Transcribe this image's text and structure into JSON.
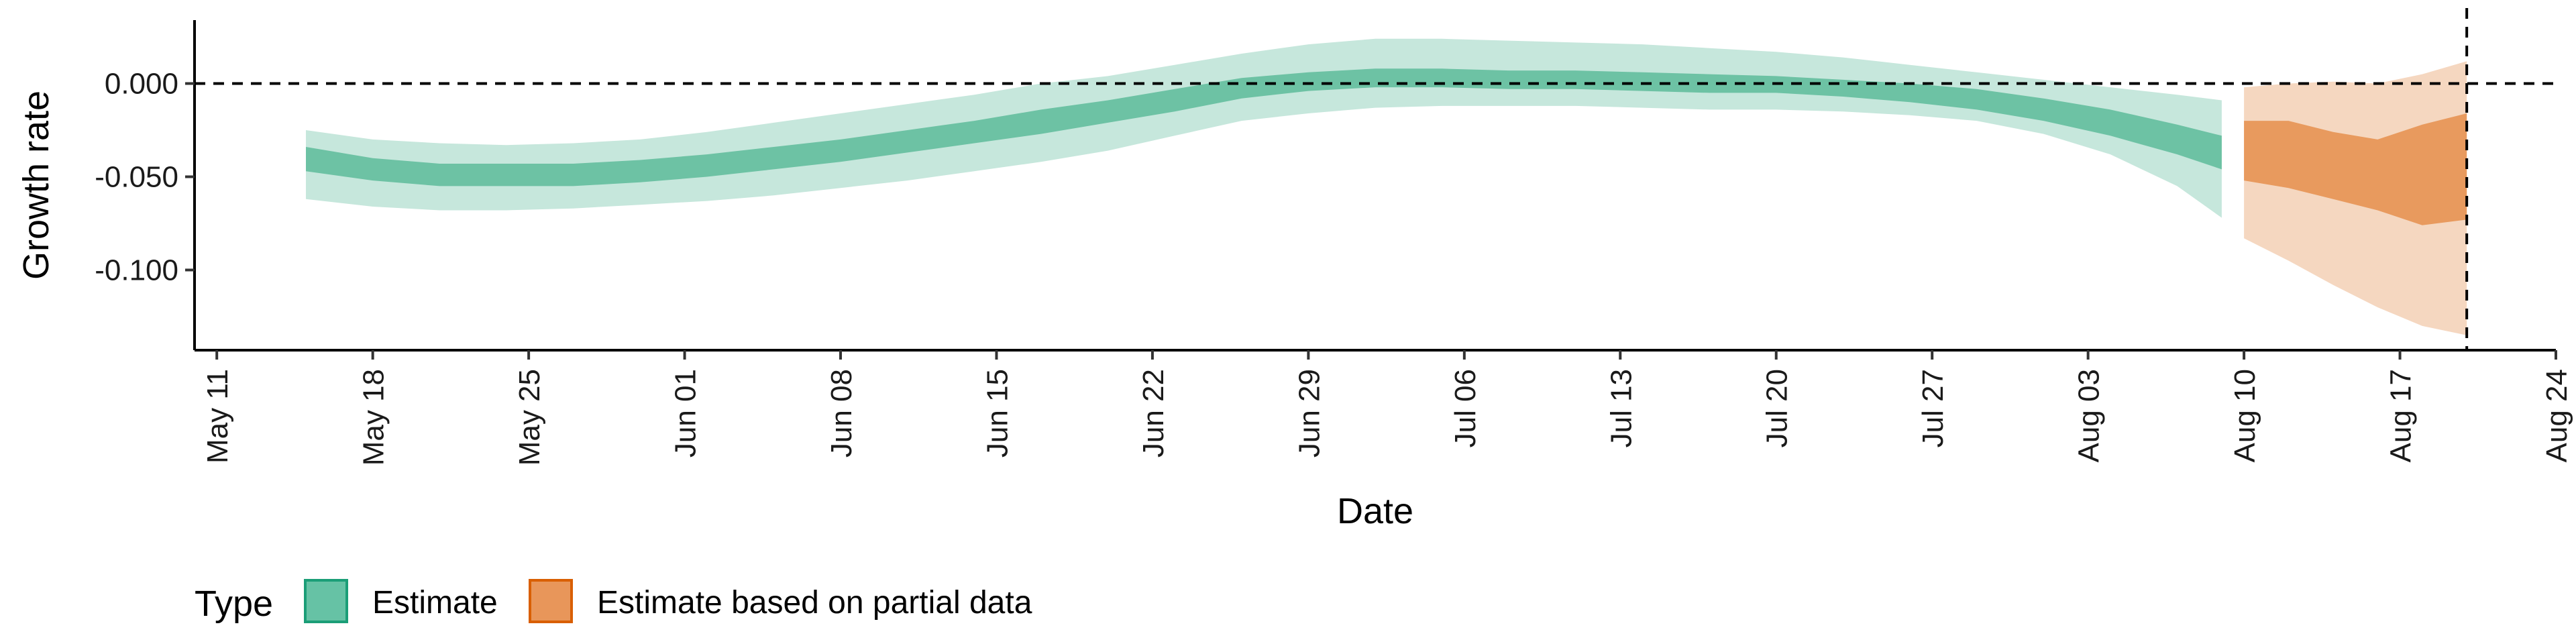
{
  "chart_data": {
    "type": "area",
    "xlabel": "Date",
    "ylabel": "Growth rate",
    "x_ticks": [
      "May 11",
      "May 18",
      "May 25",
      "Jun 01",
      "Jun 08",
      "Jun 15",
      "Jun 22",
      "Jun 29",
      "Jul 06",
      "Jul 13",
      "Jul 20",
      "Jul 27",
      "Aug 03",
      "Aug 10",
      "Aug 17",
      "Aug 24"
    ],
    "x_tick_dates": [
      "2020-05-11",
      "2020-05-18",
      "2020-05-25",
      "2020-06-01",
      "2020-06-08",
      "2020-06-15",
      "2020-06-22",
      "2020-06-29",
      "2020-07-06",
      "2020-07-13",
      "2020-07-20",
      "2020-07-27",
      "2020-08-03",
      "2020-08-10",
      "2020-08-17",
      "2020-08-24"
    ],
    "xlim": [
      "2020-05-10",
      "2020-08-24"
    ],
    "y_ticks": [
      "0.000",
      "-0.050",
      "-0.100"
    ],
    "y_tick_values": [
      0,
      -0.05,
      -0.1
    ],
    "ylim": [
      -0.143,
      0.034
    ],
    "reference_lines": [
      {
        "orientation": "horizontal",
        "y": 0,
        "style": "dashed"
      },
      {
        "orientation": "vertical",
        "x": "2020-08-20",
        "style": "dashed"
      }
    ],
    "legend": {
      "title": "Type",
      "placement": "bottom-left",
      "entries": [
        {
          "label": "Estimate",
          "fill": "#66c2a5",
          "border": "#1b9e77"
        },
        {
          "label": "Estimate based on partial data",
          "fill": "#e8965a",
          "border": "#d95f02"
        }
      ]
    },
    "series": [
      {
        "name": "Estimate",
        "color_outer": "#c6e7dc",
        "color_inner": "#6dc2a4",
        "x": [
          "2020-05-15",
          "2020-05-18",
          "2020-05-21",
          "2020-05-24",
          "2020-05-27",
          "2020-05-30",
          "2020-06-02",
          "2020-06-05",
          "2020-06-08",
          "2020-06-11",
          "2020-06-14",
          "2020-06-17",
          "2020-06-20",
          "2020-06-23",
          "2020-06-26",
          "2020-06-29",
          "2020-07-02",
          "2020-07-05",
          "2020-07-08",
          "2020-07-11",
          "2020-07-14",
          "2020-07-17",
          "2020-07-20",
          "2020-07-23",
          "2020-07-26",
          "2020-07-29",
          "2020-08-01",
          "2020-08-04",
          "2020-08-07",
          "2020-08-09"
        ],
        "outer_lo": [
          -0.062,
          -0.066,
          -0.068,
          -0.068,
          -0.067,
          -0.065,
          -0.063,
          -0.06,
          -0.056,
          -0.052,
          -0.047,
          -0.042,
          -0.036,
          -0.028,
          -0.02,
          -0.016,
          -0.013,
          -0.012,
          -0.012,
          -0.012,
          -0.013,
          -0.014,
          -0.014,
          -0.015,
          -0.017,
          -0.02,
          -0.027,
          -0.038,
          -0.055,
          -0.072
        ],
        "inner_lo": [
          -0.047,
          -0.052,
          -0.055,
          -0.055,
          -0.055,
          -0.053,
          -0.05,
          -0.046,
          -0.042,
          -0.037,
          -0.032,
          -0.027,
          -0.021,
          -0.015,
          -0.008,
          -0.004,
          -0.002,
          -0.002,
          -0.003,
          -0.003,
          -0.004,
          -0.005,
          -0.005,
          -0.007,
          -0.01,
          -0.014,
          -0.02,
          -0.028,
          -0.038,
          -0.046
        ],
        "inner_hi": [
          -0.034,
          -0.04,
          -0.043,
          -0.043,
          -0.043,
          -0.041,
          -0.038,
          -0.034,
          -0.03,
          -0.025,
          -0.02,
          -0.014,
          -0.009,
          -0.003,
          0.003,
          0.006,
          0.008,
          0.008,
          0.007,
          0.007,
          0.006,
          0.005,
          0.004,
          0.002,
          0.0,
          -0.003,
          -0.008,
          -0.014,
          -0.022,
          -0.028
        ],
        "outer_hi": [
          -0.025,
          -0.03,
          -0.032,
          -0.033,
          -0.032,
          -0.03,
          -0.026,
          -0.021,
          -0.016,
          -0.011,
          -0.006,
          0.0,
          0.004,
          0.01,
          0.016,
          0.021,
          0.024,
          0.024,
          0.023,
          0.022,
          0.021,
          0.019,
          0.017,
          0.014,
          0.01,
          0.006,
          0.002,
          -0.002,
          -0.006,
          -0.009
        ]
      },
      {
        "name": "Estimate based on partial data",
        "color_outer": "#f5d7c0",
        "color_inner": "#e89a5e",
        "x": [
          "2020-08-10",
          "2020-08-12",
          "2020-08-14",
          "2020-08-16",
          "2020-08-18",
          "2020-08-20"
        ],
        "outer_lo": [
          -0.083,
          -0.095,
          -0.108,
          -0.12,
          -0.13,
          -0.135
        ],
        "inner_lo": [
          -0.052,
          -0.056,
          -0.062,
          -0.068,
          -0.076,
          -0.073
        ],
        "inner_hi": [
          -0.02,
          -0.02,
          -0.026,
          -0.03,
          -0.022,
          -0.016
        ],
        "outer_hi": [
          -0.002,
          0.0,
          0.001,
          0.0,
          0.005,
          0.012
        ]
      }
    ]
  }
}
